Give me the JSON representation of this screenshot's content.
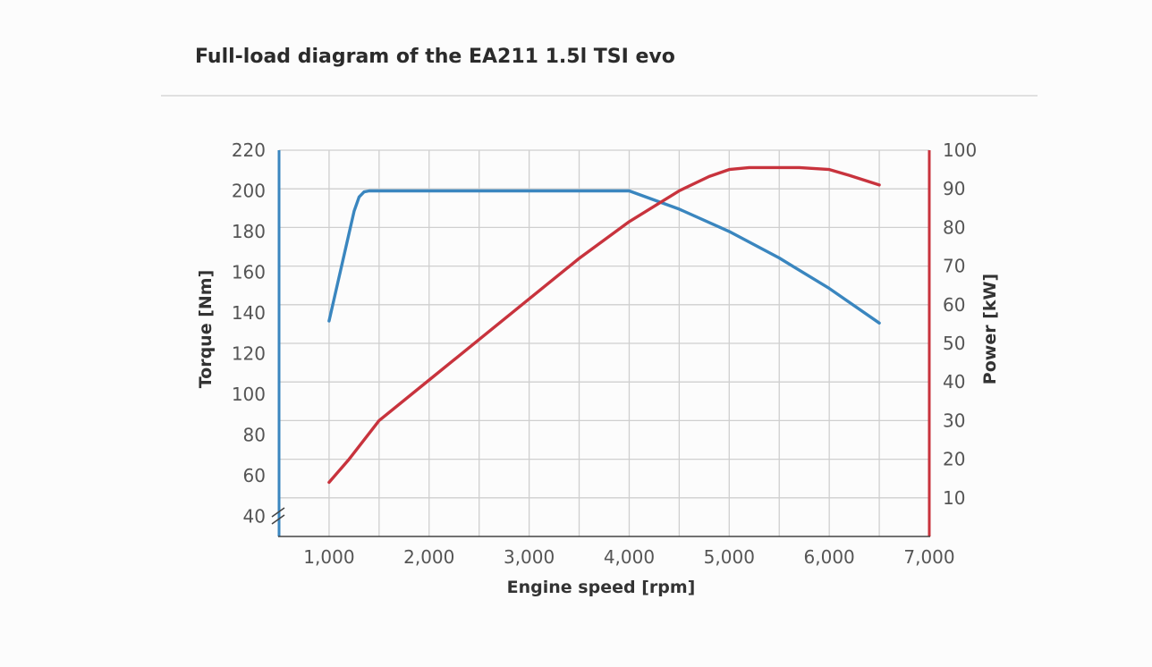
{
  "chart_data": {
    "type": "line",
    "title": "Full-load diagram of the EA211 1.5l TSI evo",
    "xlabel": "Engine speed [rpm]",
    "ylabel_left": "Torque [Nm]",
    "ylabel_right": "Power [kW]",
    "xlim": [
      500,
      7000
    ],
    "ylim_left": [
      30,
      220
    ],
    "ylim_right": [
      0,
      100
    ],
    "x_ticks": [
      1000,
      2000,
      3000,
      4000,
      5000,
      6000,
      7000
    ],
    "x_tick_labels": [
      "1,000",
      "2,000",
      "3,000",
      "4,000",
      "5,000",
      "6,000",
      "7,000"
    ],
    "y_left_ticks": [
      40,
      60,
      80,
      100,
      120,
      140,
      160,
      180,
      200,
      220
    ],
    "y_left_tick_labels": [
      "40",
      "60",
      "80",
      "100",
      "120",
      "140",
      "160",
      "180",
      "200",
      "220"
    ],
    "y_right_ticks": [
      10,
      20,
      30,
      40,
      50,
      60,
      70,
      80,
      90,
      100
    ],
    "y_right_tick_labels": [
      "10",
      "20",
      "30",
      "40",
      "50",
      "60",
      "70",
      "80",
      "90",
      "100"
    ],
    "grid": true,
    "colors": {
      "torque": "#3a86bf",
      "power": "#c8333d"
    },
    "series": [
      {
        "axis": "left",
        "color": "#3a86bf",
        "x": [
          1000,
          1250,
          1300,
          1350,
          1400,
          1500,
          4000,
          4500,
          5000,
          5500,
          6000,
          6500
        ],
        "values": [
          136,
          190,
          197,
          199.5,
          200,
          200,
          200,
          191,
          180,
          167,
          152,
          135
        ]
      },
      {
        "axis": "right",
        "color": "#c8333d",
        "x": [
          1000,
          1200,
          1500,
          2000,
          2500,
          3000,
          3500,
          4000,
          4500,
          4800,
          5000,
          5200,
          5500,
          5700,
          6000,
          6200,
          6500
        ],
        "values": [
          14,
          20,
          30,
          40.5,
          51,
          61.5,
          72,
          81.5,
          89.5,
          93.2,
          95,
          95.5,
          95.5,
          95.5,
          95,
          93.5,
          91
        ]
      }
    ]
  }
}
